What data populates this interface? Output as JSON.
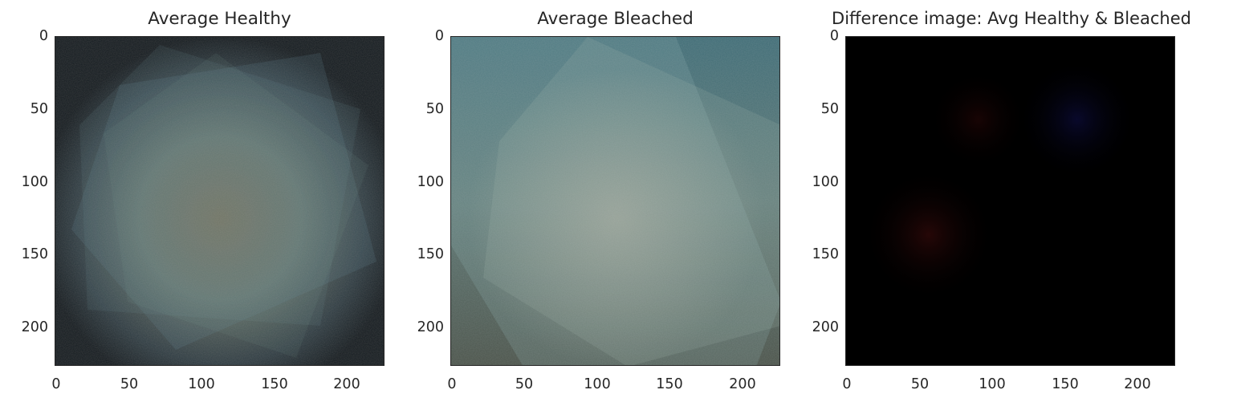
{
  "chart_data": [
    {
      "type": "heatmap",
      "title": "Average Healthy",
      "xlabel": "",
      "ylabel": "",
      "xlim": [
        0,
        227
      ],
      "ylim": [
        227,
        0
      ],
      "x_ticks": [
        "0",
        "50",
        "100",
        "150",
        "200"
      ],
      "y_ticks": [
        "0",
        "50",
        "100",
        "150",
        "200"
      ],
      "grid": false,
      "palette": {
        "background": "#141a1e",
        "center": "#6f6e5c",
        "tint": "#4a6f78"
      }
    },
    {
      "type": "heatmap",
      "title": "Average Bleached",
      "xlabel": "",
      "ylabel": "",
      "xlim": [
        0,
        227
      ],
      "ylim": [
        227,
        0
      ],
      "x_ticks": [
        "0",
        "50",
        "100",
        "150",
        "200"
      ],
      "y_ticks": [
        "0",
        "50",
        "100",
        "150",
        "200"
      ],
      "grid": false,
      "palette": {
        "background": "#2f4a4f",
        "center": "#8b9a92",
        "tint": "#5f8a92"
      }
    },
    {
      "type": "heatmap",
      "title": "Difference image: Avg Healthy & Bleached",
      "xlabel": "",
      "ylabel": "",
      "xlim": [
        0,
        227
      ],
      "ylim": [
        227,
        0
      ],
      "x_ticks": [
        "0",
        "50",
        "100",
        "150",
        "200"
      ],
      "y_ticks": [
        "0",
        "50",
        "100",
        "150",
        "200"
      ],
      "grid": false,
      "palette": {
        "background": "#000000",
        "center": "#1a0606",
        "tint": "#0a0a2a"
      }
    }
  ]
}
